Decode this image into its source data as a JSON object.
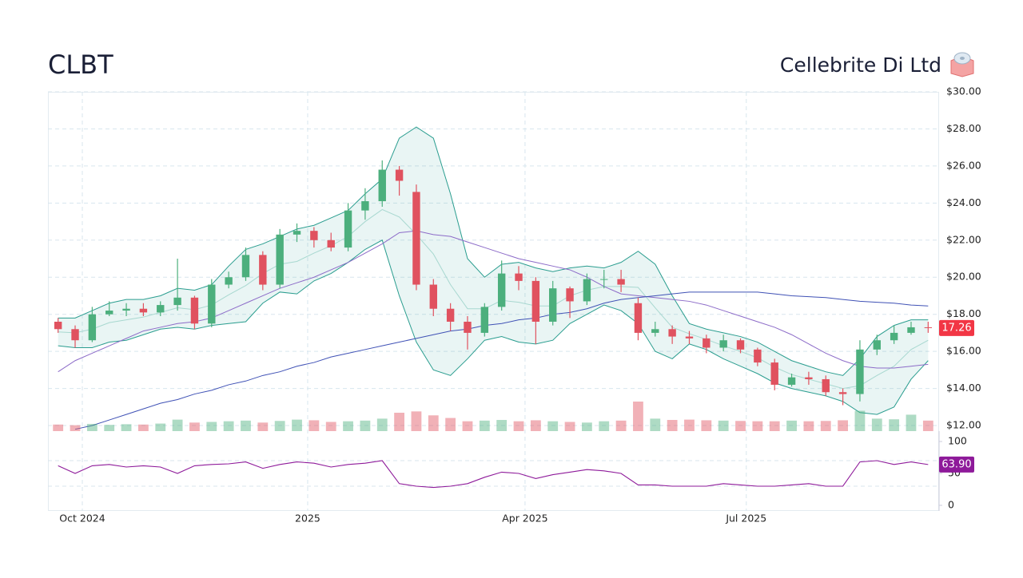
{
  "chart_data": {
    "type": "candlestick",
    "title": "CLBT",
    "subtitle": "Cellebrite Di Ltd",
    "categories": [
      null,
      null,
      null,
      null,
      null,
      null,
      null,
      null,
      null,
      null,
      null,
      null,
      null,
      null,
      null,
      null,
      null,
      null,
      null,
      null,
      null,
      null,
      null,
      null,
      null,
      null,
      null,
      null,
      null,
      null,
      null,
      null,
      null,
      null,
      null,
      null,
      null,
      null,
      null,
      null,
      null,
      null,
      null,
      null,
      null,
      null,
      null,
      null,
      null,
      null,
      null,
      null
    ],
    "xticks": [
      {
        "value": 1.42,
        "label": "Oct 2024"
      },
      {
        "value": 14.63,
        "label": "2025"
      },
      {
        "value": 27.37,
        "label": "Apr 2025"
      },
      {
        "value": 40.34,
        "label": "Jul 2025"
      }
    ],
    "open": [
      17.6,
      17.2,
      16.6,
      18.0,
      18.2,
      18.3,
      18.1,
      18.5,
      18.9,
      17.5,
      19.6,
      20.0,
      21.2,
      19.6,
      22.3,
      22.5,
      22.0,
      21.6,
      23.6,
      24.1,
      25.8,
      24.6,
      19.6,
      18.3,
      17.6,
      17.0,
      18.4,
      20.2,
      19.8,
      17.6,
      19.4,
      18.7,
      19.9,
      19.9,
      18.6,
      17.0,
      17.2,
      16.8,
      16.7,
      16.2,
      16.6,
      16.1,
      15.4,
      14.2,
      14.6,
      14.5,
      13.8,
      13.7,
      16.1,
      16.6,
      17.0,
      17.3
    ],
    "high": [
      17.8,
      17.4,
      18.4,
      18.7,
      18.6,
      18.6,
      18.7,
      21.0,
      19.0,
      19.9,
      20.3,
      21.6,
      21.4,
      22.6,
      22.9,
      22.7,
      22.4,
      24.0,
      24.8,
      26.3,
      26.0,
      25.0,
      19.9,
      18.6,
      17.9,
      18.6,
      20.9,
      20.6,
      20.0,
      19.8,
      19.5,
      20.2,
      20.4,
      20.4,
      18.9,
      17.6,
      17.4,
      17.1,
      16.9,
      16.9,
      16.7,
      16.2,
      15.6,
      14.8,
      14.9,
      14.7,
      14.0,
      16.6,
      16.9,
      17.4,
      17.6,
      17.6
    ],
    "low": [
      17.0,
      16.2,
      16.5,
      17.9,
      17.9,
      17.9,
      17.9,
      18.2,
      17.2,
      17.3,
      19.4,
      19.8,
      19.3,
      19.4,
      21.9,
      21.6,
      21.4,
      21.4,
      23.1,
      23.8,
      24.4,
      19.3,
      17.9,
      17.1,
      16.1,
      16.8,
      18.2,
      19.3,
      16.4,
      17.4,
      17.8,
      18.5,
      19.4,
      19.2,
      16.6,
      16.8,
      16.4,
      16.4,
      15.9,
      16.0,
      15.9,
      15.2,
      13.9,
      14.1,
      14.2,
      13.6,
      13.1,
      13.3,
      15.8,
      16.4,
      16.9,
      17.0
    ],
    "close": [
      17.2,
      16.6,
      18.0,
      18.2,
      18.3,
      18.1,
      18.5,
      18.9,
      17.5,
      19.6,
      20.0,
      21.2,
      19.6,
      22.3,
      22.5,
      22.0,
      21.6,
      23.6,
      24.1,
      25.8,
      25.2,
      19.6,
      18.3,
      17.6,
      17.0,
      18.4,
      20.2,
      19.8,
      17.6,
      19.4,
      18.7,
      19.9,
      19.9,
      19.6,
      17.0,
      17.2,
      16.8,
      16.7,
      16.2,
      16.6,
      16.1,
      15.4,
      14.2,
      14.6,
      14.5,
      13.8,
      13.7,
      16.1,
      16.6,
      17.0,
      17.3,
      17.26
    ],
    "volume": [
      200000,
      180000,
      220000,
      190000,
      210000,
      200000,
      230000,
      350000,
      260000,
      280000,
      300000,
      320000,
      260000,
      310000,
      350000,
      330000,
      280000,
      300000,
      320000,
      380000,
      560000,
      600000,
      480000,
      400000,
      300000,
      320000,
      340000,
      300000,
      330000,
      300000,
      280000,
      260000,
      300000,
      320000,
      900000,
      380000,
      340000,
      350000,
      330000,
      320000,
      310000,
      300000,
      300000,
      320000,
      300000,
      310000,
      330000,
      620000,
      380000,
      360000,
      500000,
      320000
    ],
    "bollinger_upper": [
      17.8,
      17.8,
      18.2,
      18.6,
      18.8,
      18.8,
      19.0,
      19.4,
      19.3,
      19.6,
      20.6,
      21.5,
      21.8,
      22.2,
      22.6,
      22.8,
      23.2,
      23.6,
      24.5,
      25.3,
      27.5,
      28.1,
      27.5,
      24.5,
      21.0,
      20.0,
      20.7,
      20.8,
      20.5,
      20.3,
      20.5,
      20.6,
      20.5,
      20.8,
      21.4,
      20.7,
      19.0,
      17.5,
      17.2,
      17.0,
      16.8,
      16.5,
      16.0,
      15.5,
      15.2,
      14.9,
      14.7,
      15.6,
      16.8,
      17.4,
      17.7,
      17.7
    ],
    "bollinger_lower": [
      16.3,
      16.2,
      16.2,
      16.5,
      16.6,
      16.9,
      17.2,
      17.3,
      17.2,
      17.4,
      17.5,
      17.6,
      18.6,
      19.2,
      19.1,
      19.8,
      20.2,
      20.8,
      21.5,
      22.0,
      19.0,
      16.5,
      15.0,
      14.7,
      15.6,
      16.6,
      16.8,
      16.5,
      16.4,
      16.6,
      17.5,
      18.0,
      18.5,
      18.2,
      17.5,
      16.0,
      15.6,
      16.4,
      16.1,
      15.6,
      15.2,
      14.8,
      14.3,
      14.0,
      13.8,
      13.6,
      13.3,
      12.7,
      12.6,
      13.0,
      14.5,
      15.5
    ],
    "bollinger_mid": [
      17.05,
      17.0,
      17.2,
      17.55,
      17.7,
      17.85,
      18.1,
      18.35,
      18.25,
      18.5,
      19.05,
      19.55,
      20.2,
      20.7,
      20.85,
      21.3,
      21.7,
      22.2,
      23.0,
      23.65,
      23.25,
      22.3,
      21.25,
      19.6,
      18.3,
      18.3,
      18.75,
      18.65,
      18.45,
      18.45,
      19.0,
      19.3,
      19.5,
      19.5,
      19.45,
      18.35,
      17.3,
      16.95,
      16.65,
      16.3,
      16.0,
      15.65,
      15.15,
      14.75,
      14.5,
      14.25,
      14.0,
      14.15,
      14.7,
      15.2,
      16.1,
      16.6
    ],
    "sma50": [
      14.9,
      15.5,
      15.9,
      16.3,
      16.7,
      17.1,
      17.3,
      17.5,
      17.6,
      17.8,
      18.2,
      18.6,
      19.0,
      19.4,
      19.7,
      20.0,
      20.4,
      20.8,
      21.3,
      21.8,
      22.4,
      22.5,
      22.3,
      22.2,
      21.9,
      21.6,
      21.3,
      21.0,
      20.8,
      20.6,
      20.4,
      20.0,
      19.5,
      19.1,
      19.0,
      18.9,
      18.8,
      18.7,
      18.5,
      18.2,
      17.9,
      17.6,
      17.3,
      16.9,
      16.4,
      15.9,
      15.5,
      15.2,
      15.1,
      15.1,
      15.2,
      15.3
    ],
    "sma200": [
      null,
      11.8,
      12.0,
      12.3,
      12.6,
      12.9,
      13.2,
      13.4,
      13.7,
      13.9,
      14.2,
      14.4,
      14.7,
      14.9,
      15.2,
      15.4,
      15.7,
      15.9,
      16.1,
      16.3,
      16.5,
      16.7,
      16.9,
      17.1,
      17.2,
      17.4,
      17.5,
      17.7,
      17.8,
      18.0,
      18.1,
      18.3,
      18.6,
      18.8,
      18.9,
      19.0,
      19.1,
      19.2,
      19.2,
      19.2,
      19.2,
      19.2,
      19.1,
      19.0,
      18.95,
      18.9,
      18.8,
      18.7,
      18.65,
      18.6,
      18.5,
      18.45
    ],
    "colors": {
      "up": "#4caf7d",
      "down": "#e0525f",
      "band": "#2a9d8f",
      "mid": "#a8d8d0",
      "sma50": "#8c6bc8",
      "sma200": "#3f51b5"
    },
    "ylim": [
      11.7,
      30
    ],
    "yticks": [
      {
        "value": 12,
        "label": "$12.00"
      },
      {
        "value": 14,
        "label": "$14.00"
      },
      {
        "value": 16,
        "label": "$16.00"
      },
      {
        "value": 18,
        "label": "$18.00"
      },
      {
        "value": 20,
        "label": "$20.00"
      },
      {
        "value": 22,
        "label": "$22.00"
      },
      {
        "value": 24,
        "label": "$24.00"
      },
      {
        "value": 26,
        "label": "$26.00"
      },
      {
        "value": 28,
        "label": "$28.00"
      },
      {
        "value": 30,
        "label": "$30.00"
      }
    ],
    "grid": true,
    "rsi": {
      "values": [
        62,
        50,
        62,
        64,
        60,
        62,
        60,
        50,
        62,
        64,
        65,
        68,
        58,
        64,
        68,
        66,
        60,
        64,
        66,
        70,
        34,
        30,
        28,
        30,
        34,
        44,
        52,
        50,
        42,
        48,
        52,
        56,
        54,
        50,
        32,
        32,
        30,
        30,
        30,
        34,
        32,
        30,
        30,
        32,
        34,
        30,
        30,
        68,
        70,
        64,
        68,
        63.9
      ],
      "last_value_label": "63.90",
      "color": "#8e1a9a",
      "ylim": [
        0,
        100
      ],
      "yticks": [
        0,
        50,
        100
      ],
      "guides": [
        70,
        30
      ]
    }
  }
}
